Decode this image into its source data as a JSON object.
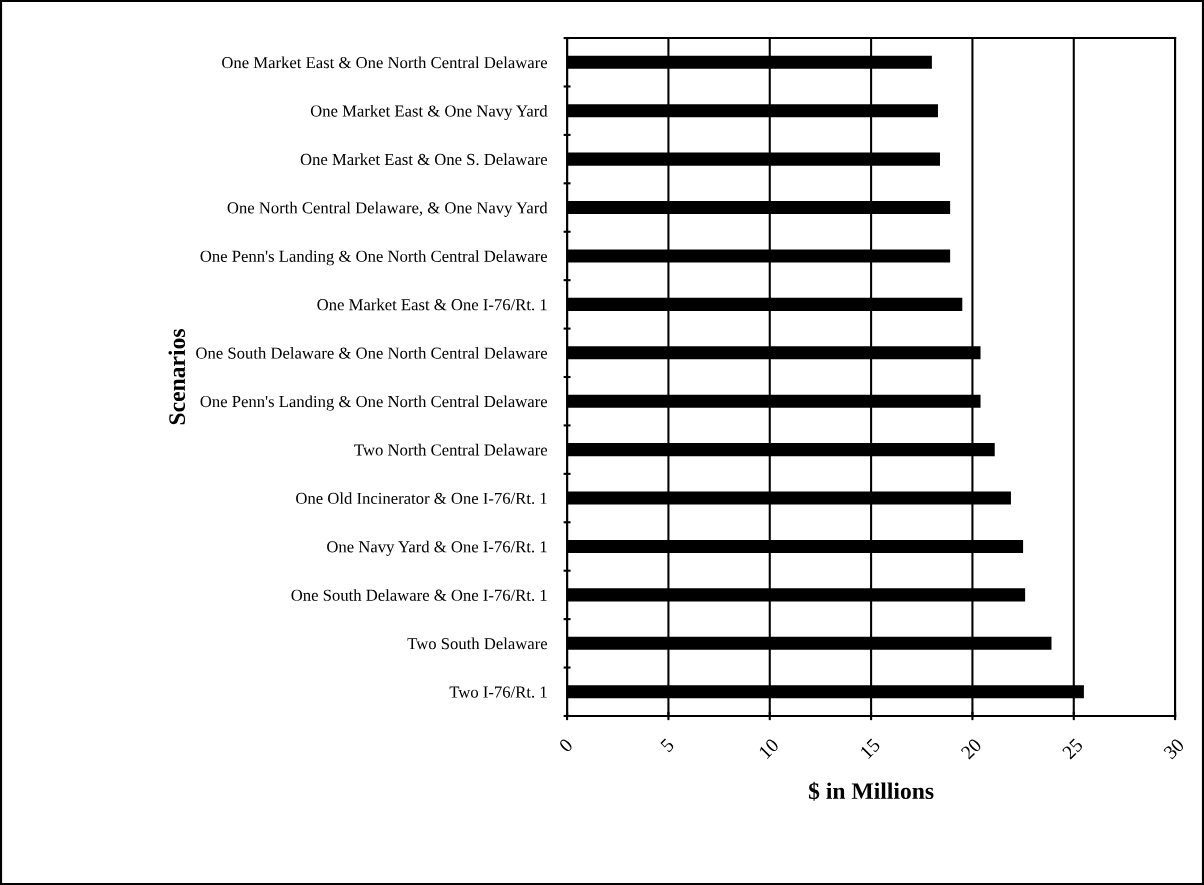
{
  "chart_data": {
    "type": "bar",
    "orientation": "horizontal",
    "xlabel": "$ in Millions",
    "ylabel": "Scenarios",
    "categories": [
      "One Market East & One North Central Delaware",
      "One Market East & One Navy Yard",
      "One Market East & One S. Delaware",
      "One North Central Delaware, & One Navy Yard",
      "One Penn's Landing & One North Central Delaware",
      "One Market East & One I-76/Rt. 1",
      "One South Delaware & One North Central Delaware",
      "One Penn's Landing & One North Central Delaware",
      "Two North Central Delaware",
      "One Old Incinerator & One I-76/Rt. 1",
      "One Navy Yard & One I-76/Rt. 1",
      "One South Delaware & One I-76/Rt. 1",
      "Two South Delaware",
      "Two I-76/Rt. 1"
    ],
    "values": [
      18.0,
      18.3,
      18.4,
      18.9,
      18.9,
      19.5,
      20.4,
      20.4,
      21.1,
      21.9,
      22.5,
      22.6,
      23.9,
      25.5
    ],
    "color": "#000000",
    "xlim": [
      0,
      30
    ],
    "xticks": [
      0,
      5,
      10,
      15,
      20,
      25,
      30
    ],
    "grid": "x",
    "legend": false
  }
}
